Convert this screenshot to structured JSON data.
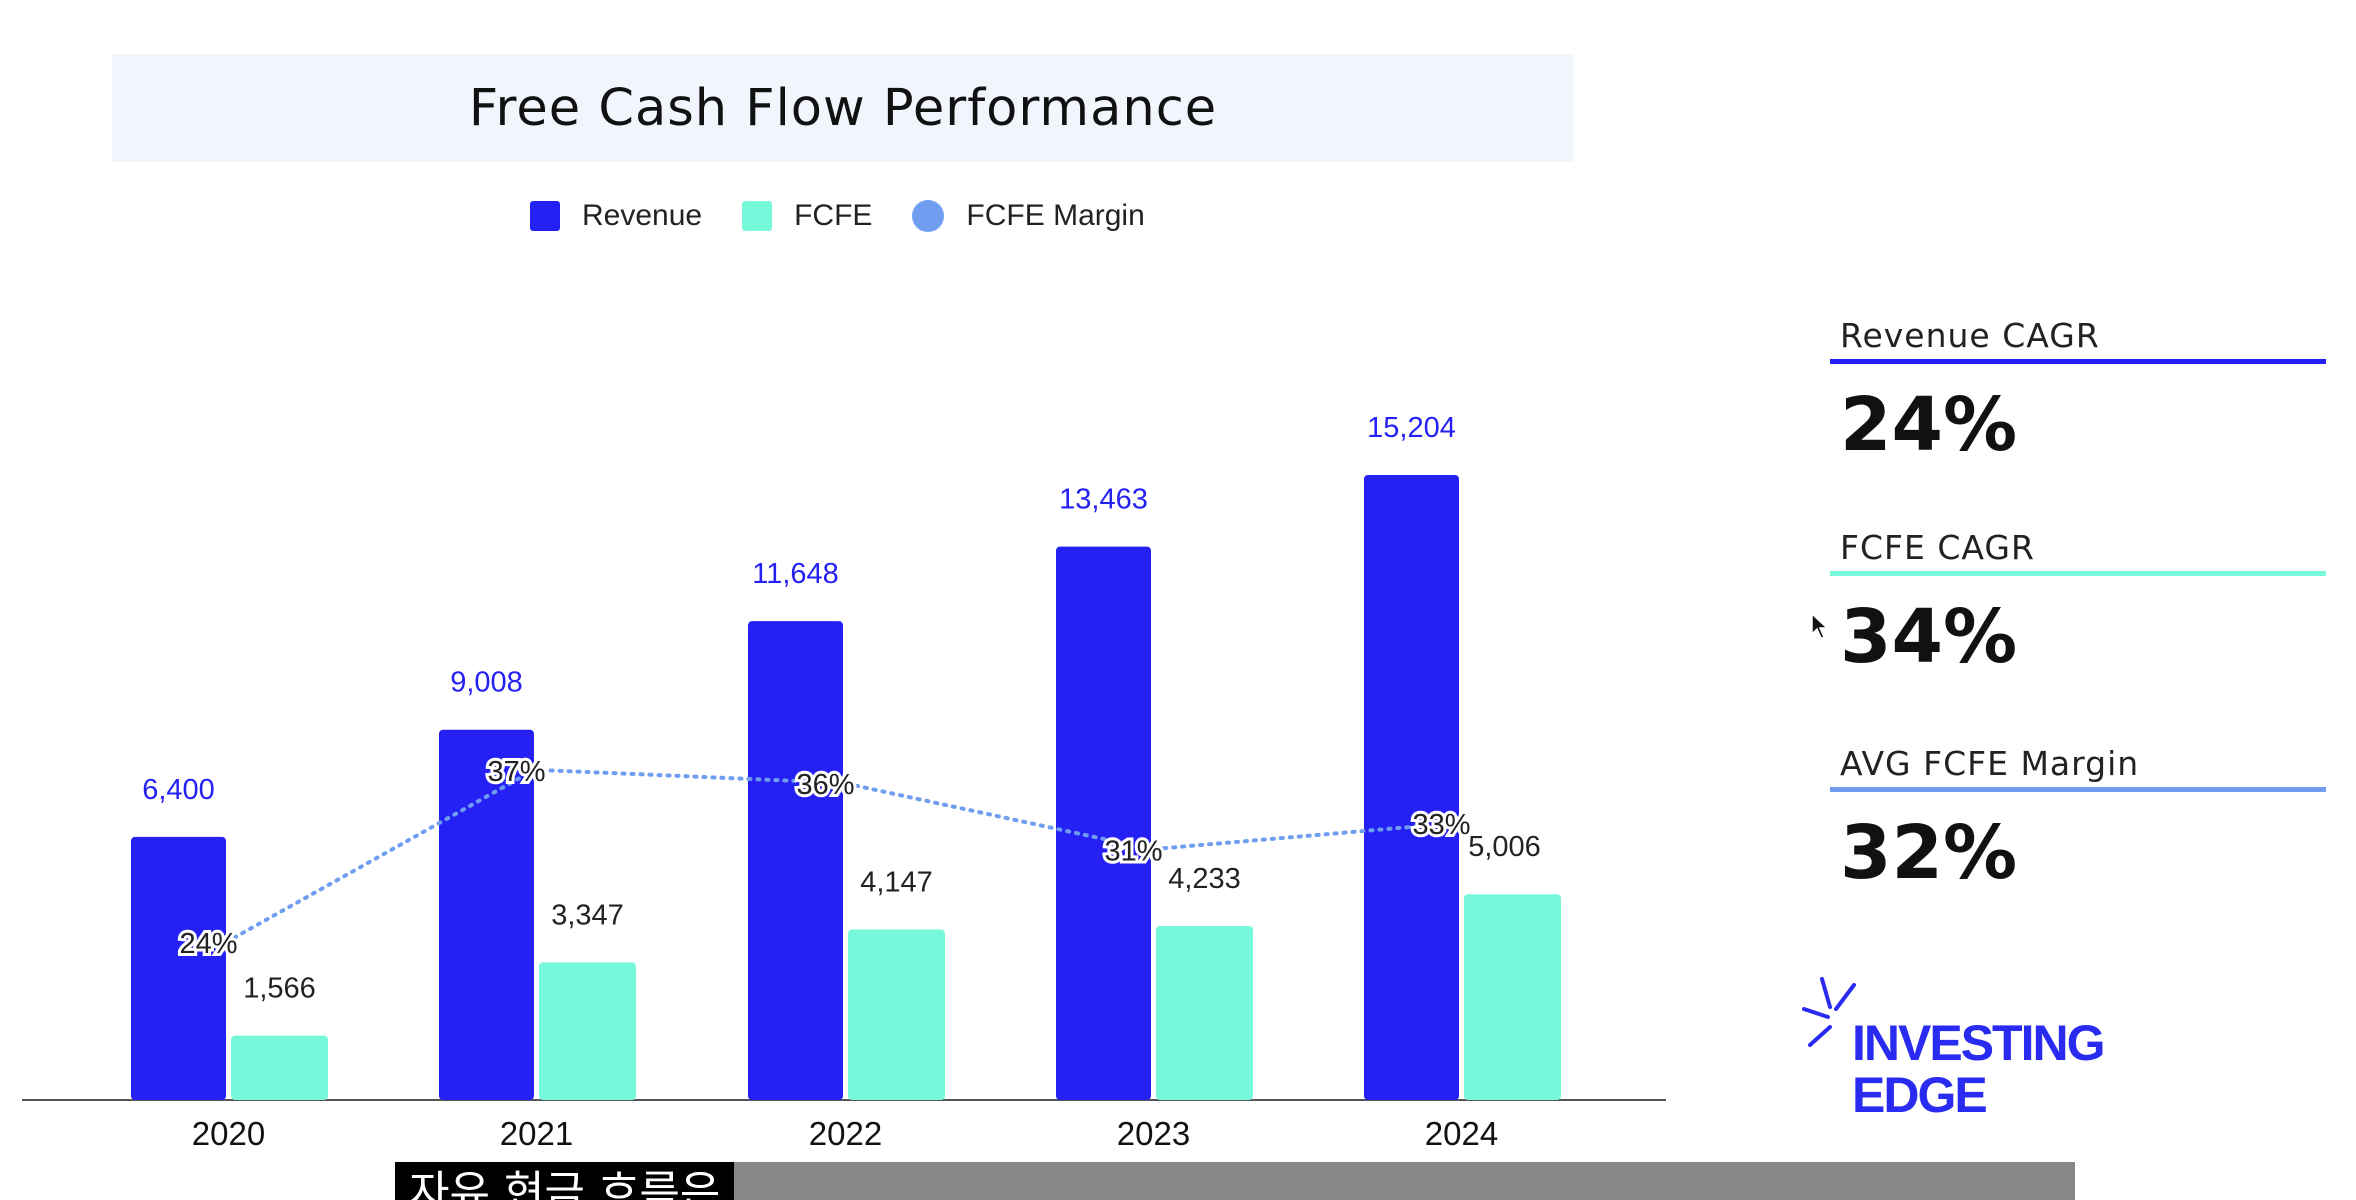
{
  "chart_data": {
    "type": "bar",
    "title": "Free Cash Flow Performance",
    "categories": [
      "2020",
      "2021",
      "2022",
      "2023",
      "2024"
    ],
    "series": [
      {
        "name": "Revenue",
        "kind": "bar",
        "color": "#2521f5",
        "values": [
          6400,
          9008,
          11648,
          13463,
          15204
        ],
        "labels": [
          "6,400",
          "9,008",
          "11,648",
          "13,463",
          "15,204"
        ]
      },
      {
        "name": "FCFE",
        "kind": "bar",
        "color": "#78f8da",
        "values": [
          1566,
          3347,
          4147,
          4233,
          5006
        ],
        "labels": [
          "1,566",
          "3,347",
          "4,147",
          "4,233",
          "5,006"
        ]
      },
      {
        "name": "FCFE Margin",
        "kind": "line",
        "color": "#6f9df0",
        "values": [
          24,
          37,
          36,
          31,
          33
        ],
        "labels": [
          "24%",
          "37%",
          "36%",
          "31%",
          "33%"
        ]
      }
    ],
    "ylim": [
      0,
      16000
    ],
    "legend": "top-center",
    "grid": false
  },
  "kpis": [
    {
      "label": "Revenue CAGR",
      "value": "24%",
      "color": "#2521f5"
    },
    {
      "label": "FCFE CAGR",
      "value": "34%",
      "color": "#78f8da"
    },
    {
      "label": "AVG FCFE Margin",
      "value": "32%",
      "color": "#6f9df0"
    }
  ],
  "logo": {
    "line1": "INVESTING",
    "line2": "EDGE"
  },
  "subtitle": "자유 현금 흐름은"
}
